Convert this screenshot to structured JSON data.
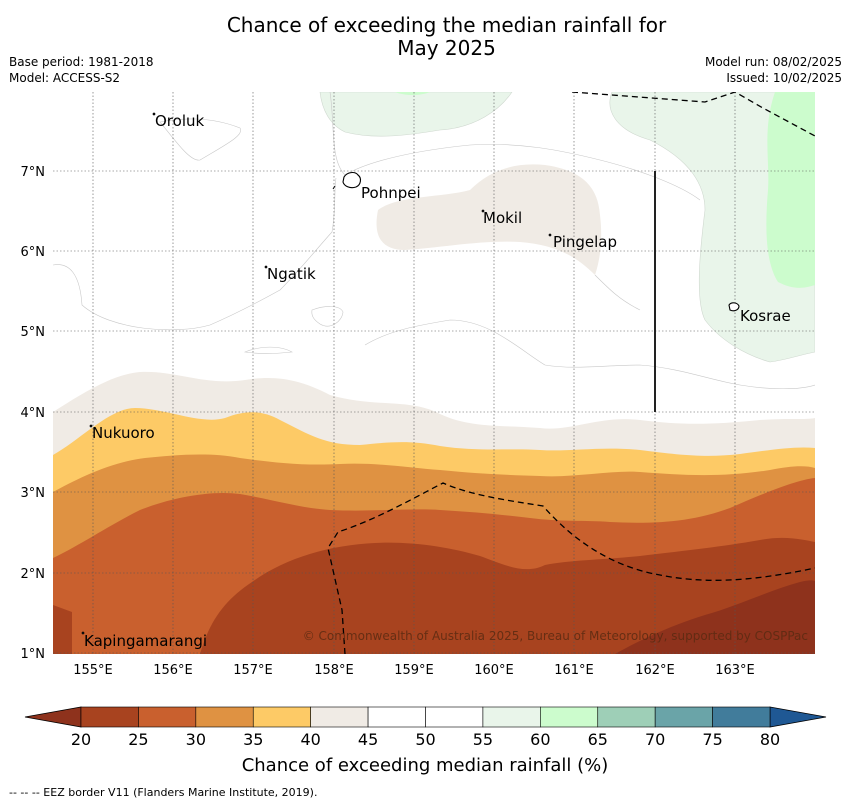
{
  "title_line1": "Chance of exceeding the median rainfall for",
  "title_line2": "May 2025",
  "meta": {
    "base_period": "Base period: 1981-2018",
    "model": "Model: ACCESS-S2",
    "model_run": "Model run: 08/02/2025",
    "issued": "Issued: 10/02/2025"
  },
  "map": {
    "lat_labels": [
      "1°N",
      "2°N",
      "3°N",
      "4°N",
      "5°N",
      "6°N",
      "7°N"
    ],
    "lon_labels": [
      "155°E",
      "156°E",
      "157°E",
      "158°E",
      "159°E",
      "160°E",
      "161°E",
      "162°E",
      "163°E"
    ],
    "places": [
      "Oroluk",
      "Pohnpei",
      "Mokil",
      "Pingelap",
      "Ngatik",
      "Kosrae",
      "Nukuoro",
      "Kapingamarangi"
    ],
    "copyright": "© Commonwealth of Australia 2025, Bureau of Meteorology, supported by COSPPac"
  },
  "legend": {
    "ticks": [
      "20",
      "25",
      "30",
      "35",
      "40",
      "45",
      "50",
      "55",
      "60",
      "65",
      "70",
      "75",
      "80"
    ],
    "colors": [
      "#a8431f",
      "#c9602e",
      "#df9242",
      "#fdca66",
      "#f0ebe5",
      "#ffffff",
      "#ffffff",
      "#e9f5ea",
      "#ccfccd",
      "#9ecfb7",
      "#6aa4a8",
      "#417c9b"
    ],
    "low_color": "#8e321c",
    "high_color": "#1f5894",
    "label": "Chance of exceeding median rainfall (%)"
  },
  "footnote": "--  --  -- EEZ border V11 (Flanders Marine Institute, 2019)."
}
